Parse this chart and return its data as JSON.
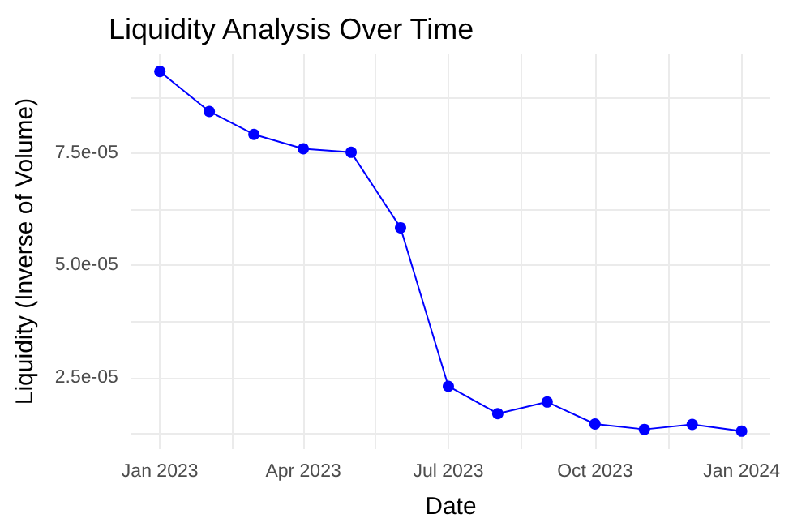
{
  "chart_data": {
    "type": "line",
    "title": "Liquidity Analysis Over Time",
    "xlabel": "Date",
    "ylabel": "Liquidity (Inverse of Volume)",
    "x": [
      "2023-01-01",
      "2023-02-01",
      "2023-03-01",
      "2023-04-01",
      "2023-05-01",
      "2023-06-01",
      "2023-07-01",
      "2023-08-01",
      "2023-09-01",
      "2023-10-01",
      "2023-11-01",
      "2023-12-01",
      "2024-01-01"
    ],
    "series": [
      {
        "color": "#0000ff",
        "values": [
          9.32e-05,
          8.43e-05,
          7.92e-05,
          7.6e-05,
          7.52e-05,
          5.84e-05,
          2.31e-05,
          1.7e-05,
          1.96e-05,
          1.47e-05,
          1.35e-05,
          1.46e-05,
          1.31e-05
        ]
      }
    ],
    "xlim": [
      "2022-12-14",
      "2024-01-19"
    ],
    "xticks": [
      {
        "value": "2023-01-01",
        "label": "Jan 2023"
      },
      {
        "value": "2023-02-15",
        "label": null
      },
      {
        "value": "2023-04-01",
        "label": "Apr 2023"
      },
      {
        "value": "2023-05-16",
        "label": null
      },
      {
        "value": "2023-07-01",
        "label": "Jul 2023"
      },
      {
        "value": "2023-08-16",
        "label": null
      },
      {
        "value": "2023-10-01",
        "label": "Oct 2023"
      },
      {
        "value": "2023-11-16",
        "label": null
      },
      {
        "value": "2024-01-01",
        "label": "Jan 2024"
      }
    ],
    "ylim": [
      9.1e-06,
      9.72e-05
    ],
    "yticks": [
      {
        "value": 1.25e-05,
        "label": null
      },
      {
        "value": 2.5e-05,
        "label": "2.5e-05"
      },
      {
        "value": 3.75e-05,
        "label": null
      },
      {
        "value": 5e-05,
        "label": "5.0e-05"
      },
      {
        "value": 6.25e-05,
        "label": null
      },
      {
        "value": 7.5e-05,
        "label": "7.5e-05"
      },
      {
        "value": 8.75e-05,
        "label": null
      }
    ],
    "grid": true,
    "marker": "circle",
    "line_style": "solid"
  }
}
